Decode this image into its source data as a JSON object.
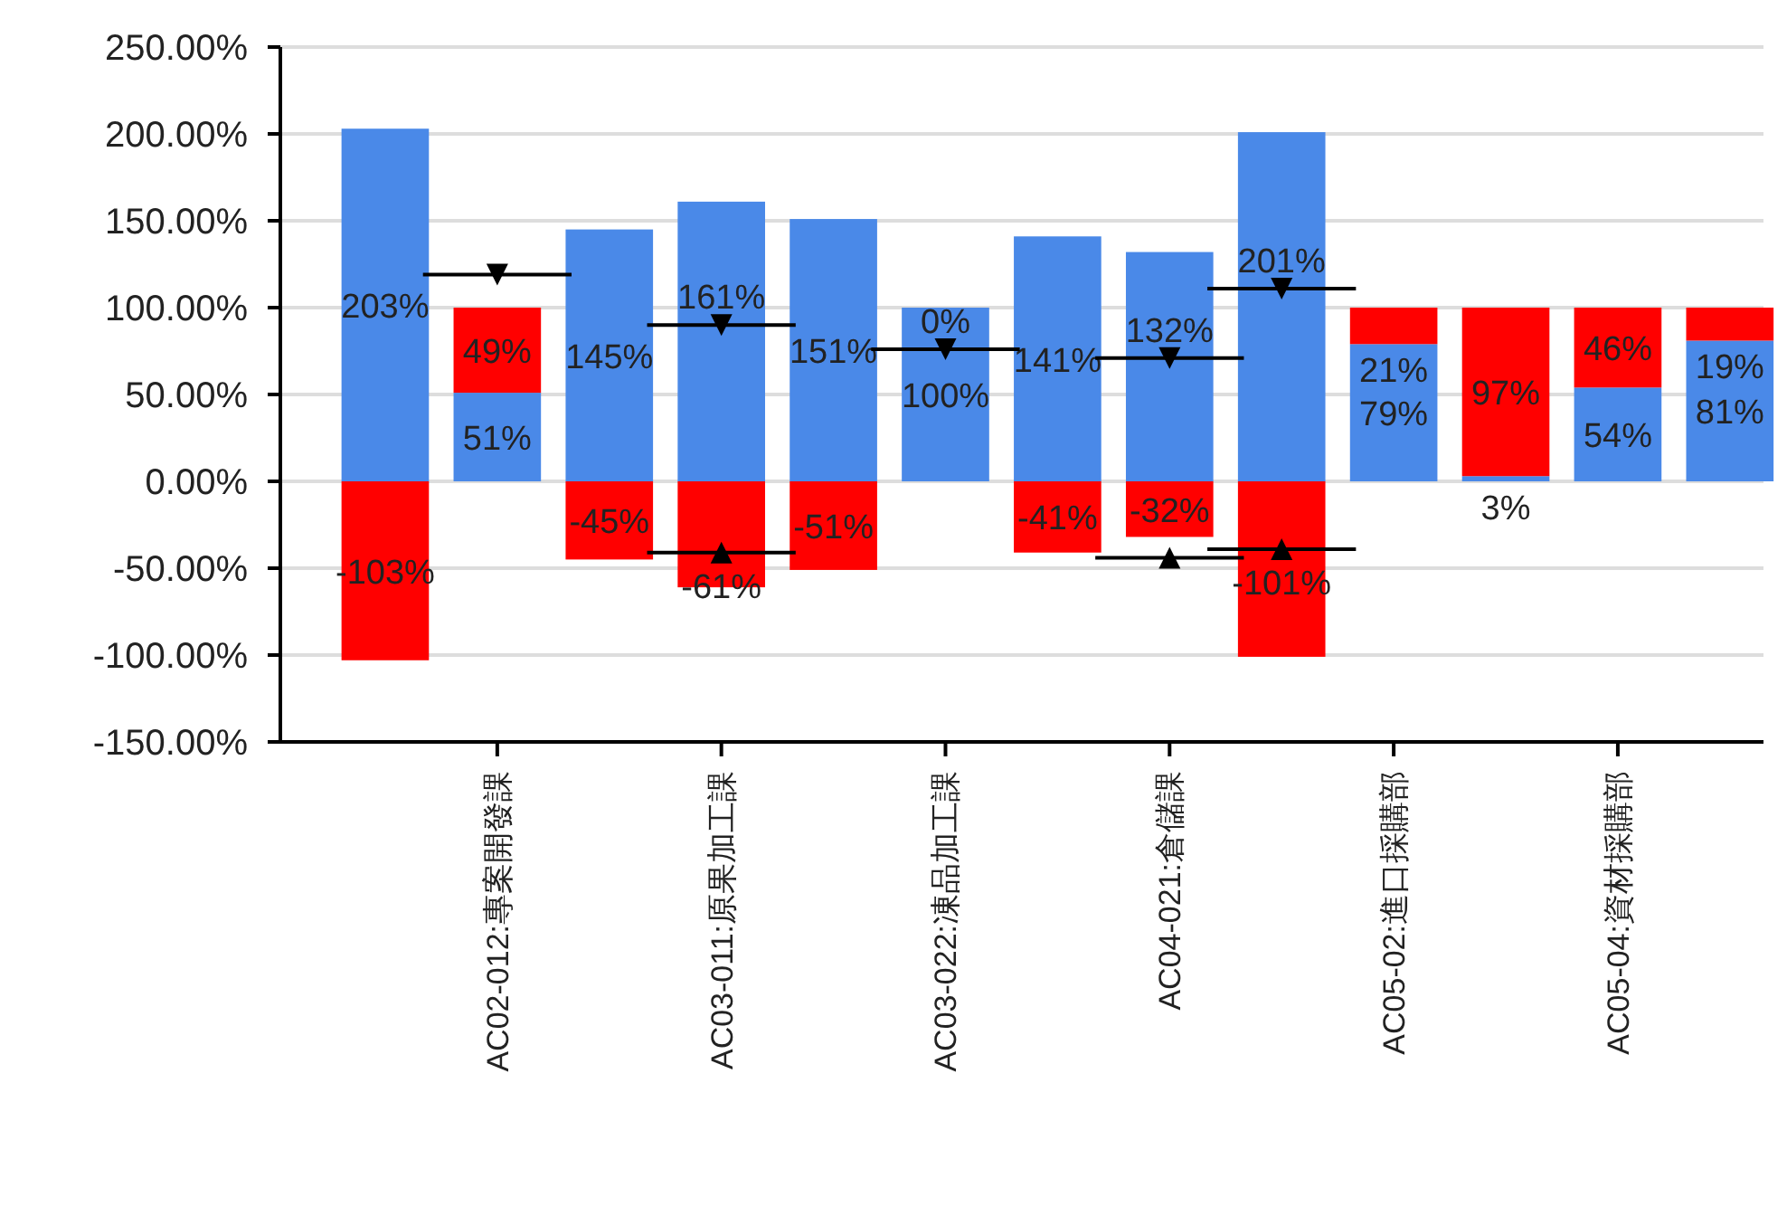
{
  "chart_data": {
    "type": "bar",
    "stacked": true,
    "categories": [
      null,
      "AC02-012:專案開發課",
      null,
      "AC03-011:原果加工課",
      null,
      "AC03-022:凍品加工課",
      null,
      "AC04-021:倉儲課",
      null,
      "AC05-02:進口採購部",
      null,
      "AC05-04:資材採購部",
      null
    ],
    "series": [
      {
        "color": "#4a89e8",
        "values": [
          203,
          51,
          145,
          161,
          151,
          100,
          141,
          132,
          201,
          79,
          3,
          54,
          81
        ],
        "value_labels": [
          "203%",
          "51%",
          "145%",
          "161%",
          "151%",
          "100%",
          "141%",
          "132%",
          "201%",
          "79%",
          "3%",
          "54%",
          "81%"
        ]
      },
      {
        "color": "#ff0000",
        "values": [
          -103,
          49,
          -45,
          -61,
          -51,
          0,
          -41,
          -32,
          -101,
          21,
          97,
          46,
          19
        ],
        "value_labels": [
          "-103%",
          "49%",
          "-45%",
          "-61%",
          "-51%",
          "0%",
          "-41%",
          "-32%",
          "-101%",
          "21%",
          "97%",
          "46%",
          "19%"
        ]
      },
      {
        "type": "scatter",
        "marker": "triangle",
        "color": "#000000",
        "values": [
          null,
          119,
          null,
          90,
          null,
          76,
          null,
          71,
          111,
          null,
          null,
          null,
          null
        ]
      },
      {
        "type": "scatter",
        "marker": "triangle",
        "color": "#000000",
        "values": [
          null,
          null,
          null,
          -41,
          null,
          null,
          null,
          -44,
          -39,
          null,
          null,
          null,
          null
        ]
      }
    ],
    "ylim": [
      -150,
      250
    ],
    "yticks": [
      {
        "value": -150,
        "label": "-150.00%"
      },
      {
        "value": -100,
        "label": "-100.00%"
      },
      {
        "value": -50,
        "label": "-50.00%"
      },
      {
        "value": 0,
        "label": "0.00%"
      },
      {
        "value": 50,
        "label": "50.00%"
      },
      {
        "value": 100,
        "label": "100.00%"
      },
      {
        "value": 150,
        "label": "150.00%"
      },
      {
        "value": 200,
        "label": "200.00%"
      },
      {
        "value": 250,
        "label": "250.00%"
      }
    ],
    "grid": "y"
  }
}
